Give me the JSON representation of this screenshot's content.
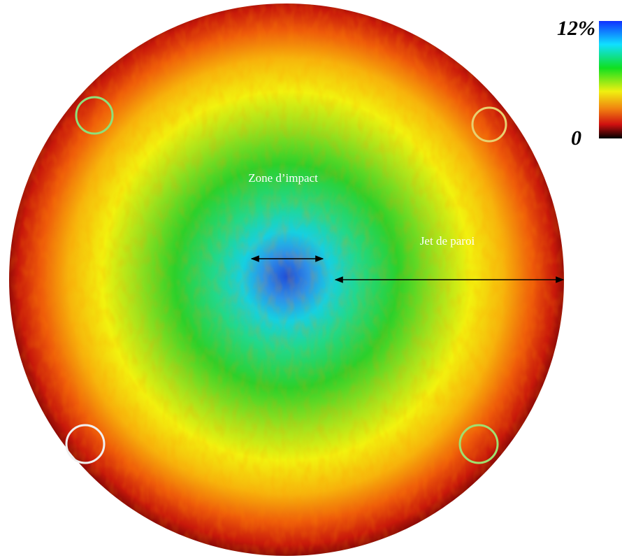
{
  "colorbar": {
    "max_label": "12%",
    "min_label": "0"
  },
  "annotations": {
    "impact_zone": "Zone d’impact",
    "wall_jet": "Jet de paroi"
  }
}
